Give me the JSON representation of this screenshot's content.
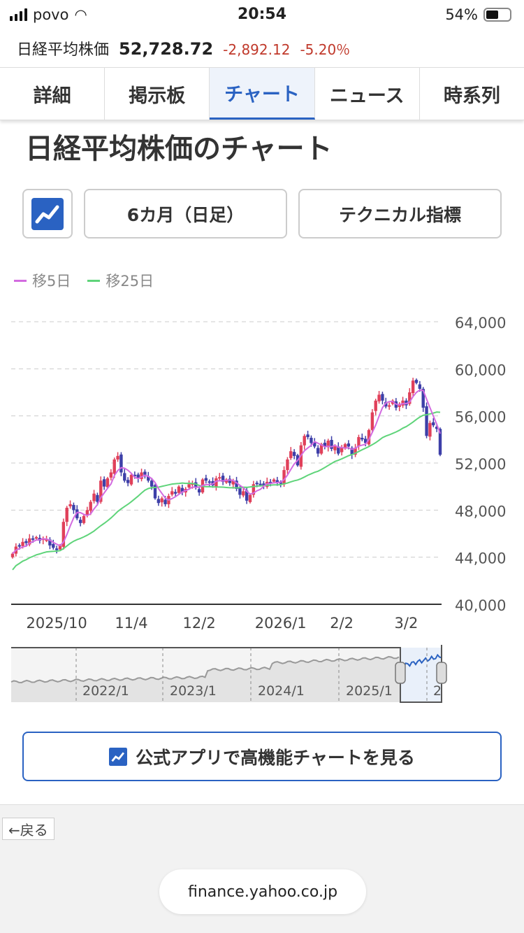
{
  "status_bar": {
    "carrier": "povo",
    "time": "20:54",
    "battery": "54%"
  },
  "ticker": {
    "name": "日経平均株価",
    "price": "52,728.72",
    "change": "-2,892.12",
    "change_pct": "-5.20％"
  },
  "tabs": [
    {
      "label": "詳細"
    },
    {
      "label": "掲示板"
    },
    {
      "label": "チャート",
      "selected": true
    },
    {
      "label": "ニュース"
    },
    {
      "label": "時系列"
    }
  ],
  "page_title": "日経平均株価のチャート",
  "controls": {
    "period": "6カ月（日足）",
    "technical": "テクニカル指標"
  },
  "legend": [
    {
      "label": "移5日",
      "color": "#d36be0"
    },
    {
      "label": "移25日",
      "color": "#5fd47a"
    }
  ],
  "chart_data": {
    "type": "candlestick",
    "ylim": [
      40000,
      64000
    ],
    "y_ticks": [
      "64,000",
      "60,000",
      "56,000",
      "52,000",
      "48,000",
      "44,000",
      "40,000"
    ],
    "y_tick_values": [
      64000,
      60000,
      56000,
      52000,
      48000,
      44000,
      40000
    ],
    "x_ticks": [
      {
        "label": "2025/10",
        "index": 13
      },
      {
        "label": "11/4",
        "index": 35
      },
      {
        "label": "12/2",
        "index": 55
      },
      {
        "label": "2026/1",
        "index": 79
      },
      {
        "label": "2/2",
        "index": 97
      },
      {
        "label": "3/2",
        "index": 116
      }
    ],
    "up_color": "#e0405a",
    "down_color": "#3d3fa8",
    "close": [
      44300,
      44900,
      45000,
      45300,
      45200,
      45600,
      45500,
      45700,
      45400,
      45600,
      45500,
      45000,
      44800,
      44600,
      45000,
      47000,
      48200,
      48500,
      48000,
      47300,
      46900,
      47500,
      48000,
      48700,
      49400,
      48700,
      50500,
      50000,
      50700,
      51200,
      52300,
      52600,
      51200,
      50500,
      50300,
      51000,
      50900,
      50700,
      51200,
      51000,
      50500,
      50000,
      49000,
      48600,
      49000,
      48500,
      49200,
      49600,
      49400,
      50000,
      49500,
      49800,
      50200,
      50300,
      49900,
      49500,
      50600,
      50500,
      50400,
      50100,
      50700,
      50800,
      50400,
      50600,
      50300,
      50500,
      49800,
      49300,
      49600,
      48800,
      49300,
      50200,
      50300,
      50200,
      50100,
      50400,
      50300,
      50600,
      50300,
      50300,
      51400,
      52300,
      53000,
      52600,
      51800,
      53500,
      54300,
      54200,
      53700,
      53400,
      52800,
      53600,
      53400,
      53900,
      53200,
      53400,
      52800,
      53300,
      53600,
      53400,
      52700,
      53300,
      54200,
      54000,
      53700,
      54800,
      56300,
      57300,
      57800,
      57300,
      56800,
      56900,
      57300,
      56700,
      57000,
      57300,
      56900,
      58000,
      59000,
      58800,
      58300,
      56700,
      54300,
      55400,
      55200,
      54900,
      52700
    ],
    "moving_averages": [
      {
        "name": "移5日",
        "period": 5
      },
      {
        "name": "移25日",
        "period": 25
      }
    ]
  },
  "navigator": {
    "labels": [
      "2022/1",
      "2023/1",
      "2024/1",
      "2025/1",
      "2"
    ]
  },
  "app_button": "公式アプリで高機能チャートを見る",
  "browser": {
    "back": "←戻る",
    "url": "finance.yahoo.co.jp"
  }
}
